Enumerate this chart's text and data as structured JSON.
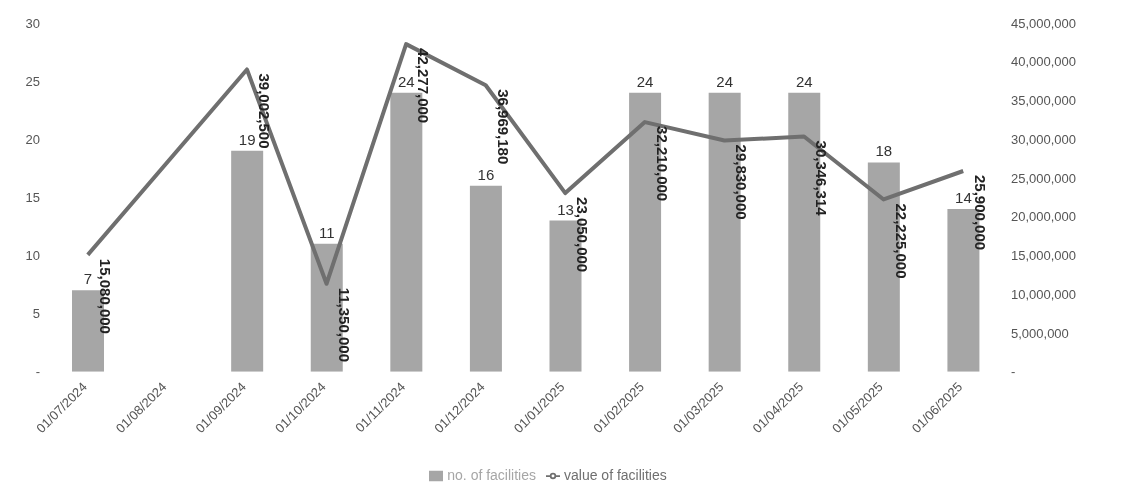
{
  "chart_data": {
    "type": "bar",
    "categories": [
      "01/07/2024",
      "01/08/2024",
      "01/09/2024",
      "01/10/2024",
      "01/11/2024",
      "01/12/2024",
      "01/01/2025",
      "01/02/2025",
      "01/03/2025",
      "01/04/2025",
      "01/05/2025",
      "01/06/2025"
    ],
    "series": [
      {
        "name": "no. of facilities",
        "color": "#a6a6a6",
        "values": [
          7,
          null,
          19,
          11,
          24,
          16,
          13,
          24,
          24,
          24,
          18,
          14
        ],
        "value_labels": [
          "7",
          null,
          "19",
          "11",
          "24",
          "16",
          "13",
          "24",
          "24",
          "24",
          "18",
          "14"
        ]
      },
      {
        "name": "value of facilities",
        "type": "line",
        "axis": "y2",
        "color": "#6f6f6f",
        "values": [
          15080000,
          null,
          39002500,
          11350000,
          42277000,
          36969180,
          23050000,
          32210000,
          29830000,
          30346314,
          22225000,
          25900000
        ],
        "value_labels": [
          "15,080,000",
          null,
          "39,002,500",
          "11,350,000",
          "42,277,000",
          "36,969,180",
          "23,050,000",
          "32,210,000",
          "29,830,000",
          "30,346,314",
          "22,225,000",
          "25,900,000"
        ]
      }
    ],
    "ylim": [
      0,
      30
    ],
    "yticks": [
      {
        "value": 0,
        "label": "-"
      },
      5,
      10,
      15,
      20,
      25,
      30
    ],
    "y2lim": [
      0,
      45000000
    ],
    "y2ticks": [
      {
        "value": 0,
        "label": "-"
      },
      {
        "value": 5000000,
        "label": "5,000,000"
      },
      {
        "value": 10000000,
        "label": "10,000,000"
      },
      {
        "value": 15000000,
        "label": "15,000,000"
      },
      {
        "value": 20000000,
        "label": "20,000,000"
      },
      {
        "value": 25000000,
        "label": "25,000,000"
      },
      {
        "value": 30000000,
        "label": "30,000,000"
      },
      {
        "value": 35000000,
        "label": "35,000,000"
      },
      {
        "value": 40000000,
        "label": "40,000,000"
      },
      {
        "value": 45000000,
        "label": "45,000,000"
      }
    ],
    "legend": "bottom",
    "grid": false,
    "marker": "none",
    "line_style": "solid"
  }
}
